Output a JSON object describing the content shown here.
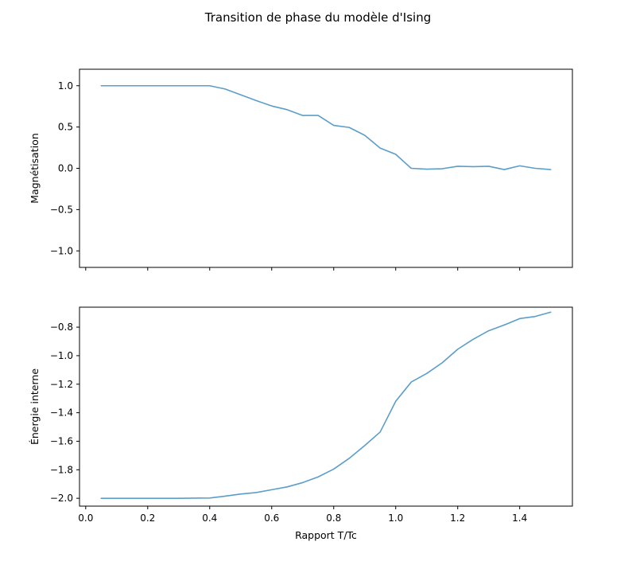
{
  "title": "Transition de phase du modèle d'Ising",
  "line_color": "#5b9ec9",
  "chart_data": [
    {
      "type": "line",
      "ylabel": "Magnétisation",
      "xlim": [
        -0.02,
        1.57
      ],
      "ylim": [
        -1.2,
        1.2
      ],
      "xticks": [
        0.0,
        0.2,
        0.4,
        0.6,
        0.8,
        1.0,
        1.2,
        1.4
      ],
      "xtick_labels_shown": false,
      "yticks": [
        1.0,
        0.5,
        0.0,
        -0.5,
        -1.0
      ],
      "ytick_labels": [
        "1.0",
        "0.5",
        "0.0",
        "−0.5",
        "−1.0"
      ],
      "grid": false,
      "x": [
        0.05,
        0.1,
        0.15,
        0.2,
        0.25,
        0.3,
        0.35,
        0.4,
        0.45,
        0.5,
        0.55,
        0.6,
        0.65,
        0.7,
        0.75,
        0.8,
        0.85,
        0.9,
        0.95,
        1.0,
        1.05,
        1.1,
        1.15,
        1.2,
        1.25,
        1.3,
        1.35,
        1.4,
        1.45,
        1.5
      ],
      "y": [
        1.0,
        1.0,
        1.0,
        1.0,
        1.0,
        1.0,
        1.0,
        1.0,
        0.96,
        0.89,
        0.82,
        0.755,
        0.71,
        0.64,
        0.64,
        0.52,
        0.495,
        0.4,
        0.245,
        0.17,
        0.0,
        -0.01,
        -0.005,
        0.025,
        0.02,
        0.025,
        -0.015,
        0.03,
        0.0,
        -0.015
      ]
    },
    {
      "type": "line",
      "ylabel": "Énergie interne",
      "xlabel": "Rapport T/Tc",
      "xlim": [
        -0.02,
        1.57
      ],
      "ylim": [
        -2.055,
        -0.66
      ],
      "xticks": [
        0.0,
        0.2,
        0.4,
        0.6,
        0.8,
        1.0,
        1.2,
        1.4
      ],
      "xtick_labels": [
        "0.0",
        "0.2",
        "0.4",
        "0.6",
        "0.8",
        "1.0",
        "1.2",
        "1.4"
      ],
      "yticks": [
        -0.8,
        -1.0,
        -1.2,
        -1.4,
        -1.6,
        -1.8,
        -2.0
      ],
      "ytick_labels": [
        "−0.8",
        "−1.0",
        "−1.2",
        "−1.4",
        "−1.6",
        "−1.8",
        "−2.0"
      ],
      "grid": false,
      "x": [
        0.05,
        0.1,
        0.15,
        0.2,
        0.25,
        0.3,
        0.35,
        0.4,
        0.45,
        0.5,
        0.55,
        0.6,
        0.65,
        0.7,
        0.75,
        0.8,
        0.85,
        0.9,
        0.95,
        1.0,
        1.05,
        1.1,
        1.15,
        1.2,
        1.25,
        1.3,
        1.35,
        1.4,
        1.45,
        1.5
      ],
      "y": [
        -2.0,
        -2.0,
        -2.0,
        -2.0,
        -2.0,
        -2.0,
        -1.999,
        -1.998,
        -1.985,
        -1.97,
        -1.96,
        -1.94,
        -1.92,
        -1.89,
        -1.85,
        -1.795,
        -1.72,
        -1.63,
        -1.535,
        -1.32,
        -1.185,
        -1.125,
        -1.05,
        -0.955,
        -0.885,
        -0.825,
        -0.785,
        -0.74,
        -0.725,
        -0.695
      ]
    }
  ]
}
